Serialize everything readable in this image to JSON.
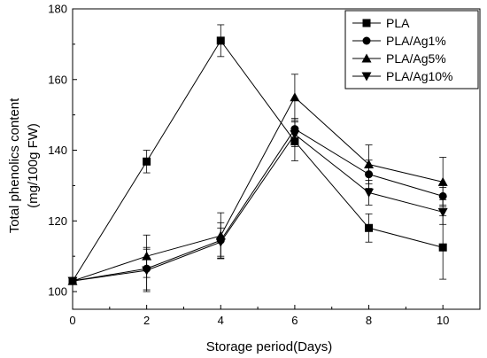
{
  "chart_data": {
    "type": "line",
    "xlabel": "Storage period(Days)",
    "ylabel_lines": [
      "Total phenolics content",
      "(mg/100g FW)"
    ],
    "x_ticks": [
      0,
      2,
      4,
      6,
      8,
      10
    ],
    "y_ticks": [
      100,
      120,
      140,
      160,
      180
    ],
    "xlim": [
      0,
      11
    ],
    "ylim": [
      95,
      180
    ],
    "legend_position": "top-right",
    "legend_frame": true,
    "grid": false,
    "x": [
      0,
      2,
      4,
      6,
      8,
      10
    ],
    "series": [
      {
        "name": "PLA",
        "marker": "square",
        "values": [
          103,
          136.8,
          171,
          142.5,
          118,
          112.5
        ],
        "errors": [
          0,
          3.2,
          4.5,
          5.5,
          4,
          9
        ]
      },
      {
        "name": "PLA/Ag1%",
        "marker": "circle",
        "values": [
          103,
          106.5,
          114.5,
          146,
          133.2,
          127
        ],
        "errors": [
          0,
          6,
          5,
          3,
          4,
          2.5
        ]
      },
      {
        "name": "PLA/Ag5%",
        "marker": "triangle-up",
        "values": [
          103,
          110,
          115.8,
          155,
          136,
          131
        ],
        "errors": [
          0,
          6,
          6.5,
          6.5,
          5.5,
          7
        ]
      },
      {
        "name": "PLA/Ag10%",
        "marker": "triangle-down",
        "values": [
          103,
          106,
          114,
          144.5,
          128,
          122.5
        ],
        "errors": [
          0,
          6,
          4,
          3.5,
          3.5,
          3.5
        ]
      }
    ]
  }
}
